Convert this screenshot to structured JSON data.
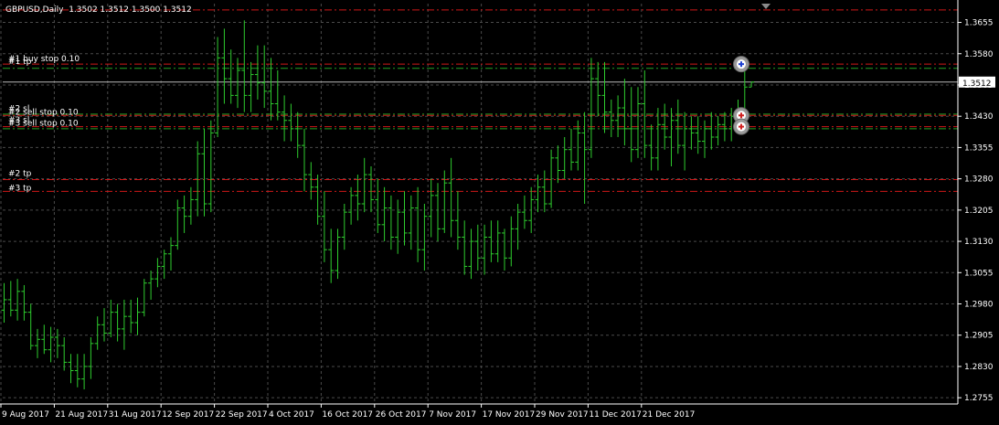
{
  "header": {
    "symbol": "GBPUSD,Daily",
    "ohlc": "1.3502 1.3512 1.3500 1.3512"
  },
  "colors": {
    "background": "#000000",
    "grid": "#4a4a4a",
    "axis": "#ffffff",
    "text": "#ffffff",
    "candle": "#2ecc2e",
    "order_line": "#d01818",
    "order_line_green": "#24a024",
    "current_price_bg": "#ffffff",
    "current_price_fg": "#000000"
  },
  "chart_data": {
    "type": "ohlc",
    "symbol": "GBPUSD",
    "timeframe": "Daily",
    "ylim": [
      1.274,
      1.37
    ],
    "y_ticks": [
      "1.3655",
      "1.3580",
      "1.3505",
      "1.3430",
      "1.3355",
      "1.3280",
      "1.3205",
      "1.3130",
      "1.3055",
      "1.2980",
      "1.2905",
      "1.2830",
      "1.2755"
    ],
    "x_ticks": [
      "9 Aug 2017",
      "21 Aug 2017",
      "31 Aug 2017",
      "12 Sep 2017",
      "22 Sep 2017",
      "4 Oct 2017",
      "16 Oct 2017",
      "26 Oct 2017",
      "7 Nov 2017",
      "17 Nov 2017",
      "29 Nov 2017",
      "11 Dec 2017",
      "21 Dec 2017"
    ],
    "x_tick_bars": [
      0,
      8,
      16,
      24,
      32,
      40,
      48,
      56,
      64,
      72,
      80,
      88,
      96
    ],
    "current_price": "1.3512",
    "bars": [
      {
        "o": 1.2965,
        "h": 1.303,
        "l": 1.2935,
        "c": 1.299
      },
      {
        "o": 1.299,
        "h": 1.3035,
        "l": 1.295,
        "c": 1.2965
      },
      {
        "o": 1.2965,
        "h": 1.304,
        "l": 1.294,
        "c": 1.301
      },
      {
        "o": 1.301,
        "h": 1.3025,
        "l": 1.294,
        "c": 1.296
      },
      {
        "o": 1.296,
        "h": 1.298,
        "l": 1.287,
        "c": 1.288
      },
      {
        "o": 1.288,
        "h": 1.292,
        "l": 1.285,
        "c": 1.2895
      },
      {
        "o": 1.2895,
        "h": 1.293,
        "l": 1.286,
        "c": 1.287
      },
      {
        "o": 1.287,
        "h": 1.2925,
        "l": 1.284,
        "c": 1.29
      },
      {
        "o": 1.29,
        "h": 1.292,
        "l": 1.285,
        "c": 1.288
      },
      {
        "o": 1.288,
        "h": 1.29,
        "l": 1.282,
        "c": 1.284
      },
      {
        "o": 1.284,
        "h": 1.286,
        "l": 1.279,
        "c": 1.282
      },
      {
        "o": 1.282,
        "h": 1.286,
        "l": 1.278,
        "c": 1.28
      },
      {
        "o": 1.28,
        "h": 1.286,
        "l": 1.2775,
        "c": 1.283
      },
      {
        "o": 1.283,
        "h": 1.29,
        "l": 1.28,
        "c": 1.2885
      },
      {
        "o": 1.2885,
        "h": 1.295,
        "l": 1.287,
        "c": 1.293
      },
      {
        "o": 1.293,
        "h": 1.297,
        "l": 1.289,
        "c": 1.291
      },
      {
        "o": 1.291,
        "h": 1.299,
        "l": 1.29,
        "c": 1.296
      },
      {
        "o": 1.296,
        "h": 1.298,
        "l": 1.289,
        "c": 1.292
      },
      {
        "o": 1.292,
        "h": 1.299,
        "l": 1.287,
        "c": 1.295
      },
      {
        "o": 1.295,
        "h": 1.299,
        "l": 1.291,
        "c": 1.2935
      },
      {
        "o": 1.2935,
        "h": 1.2995,
        "l": 1.2905,
        "c": 1.296
      },
      {
        "o": 1.296,
        "h": 1.304,
        "l": 1.295,
        "c": 1.303
      },
      {
        "o": 1.303,
        "h": 1.306,
        "l": 1.299,
        "c": 1.304
      },
      {
        "o": 1.304,
        "h": 1.309,
        "l": 1.302,
        "c": 1.307
      },
      {
        "o": 1.307,
        "h": 1.311,
        "l": 1.304,
        "c": 1.31
      },
      {
        "o": 1.31,
        "h": 1.314,
        "l": 1.306,
        "c": 1.312
      },
      {
        "o": 1.312,
        "h": 1.323,
        "l": 1.311,
        "c": 1.321
      },
      {
        "o": 1.321,
        "h": 1.324,
        "l": 1.315,
        "c": 1.319
      },
      {
        "o": 1.319,
        "h": 1.326,
        "l": 1.317,
        "c": 1.323
      },
      {
        "o": 1.323,
        "h": 1.337,
        "l": 1.319,
        "c": 1.334
      },
      {
        "o": 1.334,
        "h": 1.34,
        "l": 1.319,
        "c": 1.322
      },
      {
        "o": 1.322,
        "h": 1.342,
        "l": 1.32,
        "c": 1.339
      },
      {
        "o": 1.339,
        "h": 1.362,
        "l": 1.338,
        "c": 1.357
      },
      {
        "o": 1.357,
        "h": 1.364,
        "l": 1.346,
        "c": 1.352
      },
      {
        "o": 1.352,
        "h": 1.359,
        "l": 1.346,
        "c": 1.348
      },
      {
        "o": 1.348,
        "h": 1.357,
        "l": 1.345,
        "c": 1.354
      },
      {
        "o": 1.354,
        "h": 1.366,
        "l": 1.344,
        "c": 1.348
      },
      {
        "o": 1.348,
        "h": 1.356,
        "l": 1.344,
        "c": 1.353
      },
      {
        "o": 1.353,
        "h": 1.36,
        "l": 1.347,
        "c": 1.351
      },
      {
        "o": 1.351,
        "h": 1.36,
        "l": 1.345,
        "c": 1.349
      },
      {
        "o": 1.349,
        "h": 1.357,
        "l": 1.342,
        "c": 1.346
      },
      {
        "o": 1.346,
        "h": 1.354,
        "l": 1.342,
        "c": 1.344
      },
      {
        "o": 1.344,
        "h": 1.348,
        "l": 1.337,
        "c": 1.342
      },
      {
        "o": 1.342,
        "h": 1.346,
        "l": 1.337,
        "c": 1.34
      },
      {
        "o": 1.34,
        "h": 1.344,
        "l": 1.333,
        "c": 1.336
      },
      {
        "o": 1.336,
        "h": 1.34,
        "l": 1.325,
        "c": 1.329
      },
      {
        "o": 1.329,
        "h": 1.332,
        "l": 1.323,
        "c": 1.326
      },
      {
        "o": 1.326,
        "h": 1.329,
        "l": 1.317,
        "c": 1.319
      },
      {
        "o": 1.319,
        "h": 1.325,
        "l": 1.308,
        "c": 1.311
      },
      {
        "o": 1.311,
        "h": 1.316,
        "l": 1.303,
        "c": 1.306
      },
      {
        "o": 1.306,
        "h": 1.316,
        "l": 1.304,
        "c": 1.314
      },
      {
        "o": 1.314,
        "h": 1.322,
        "l": 1.311,
        "c": 1.32
      },
      {
        "o": 1.32,
        "h": 1.326,
        "l": 1.317,
        "c": 1.324
      },
      {
        "o": 1.324,
        "h": 1.329,
        "l": 1.318,
        "c": 1.322
      },
      {
        "o": 1.322,
        "h": 1.333,
        "l": 1.32,
        "c": 1.329
      },
      {
        "o": 1.329,
        "h": 1.331,
        "l": 1.32,
        "c": 1.323
      },
      {
        "o": 1.323,
        "h": 1.328,
        "l": 1.315,
        "c": 1.317
      },
      {
        "o": 1.317,
        "h": 1.326,
        "l": 1.313,
        "c": 1.321
      },
      {
        "o": 1.321,
        "h": 1.324,
        "l": 1.311,
        "c": 1.314
      },
      {
        "o": 1.314,
        "h": 1.323,
        "l": 1.31,
        "c": 1.32
      },
      {
        "o": 1.32,
        "h": 1.325,
        "l": 1.312,
        "c": 1.315
      },
      {
        "o": 1.315,
        "h": 1.324,
        "l": 1.311,
        "c": 1.321
      },
      {
        "o": 1.321,
        "h": 1.326,
        "l": 1.308,
        "c": 1.311
      },
      {
        "o": 1.311,
        "h": 1.322,
        "l": 1.306,
        "c": 1.319
      },
      {
        "o": 1.319,
        "h": 1.328,
        "l": 1.314,
        "c": 1.324
      },
      {
        "o": 1.324,
        "h": 1.327,
        "l": 1.313,
        "c": 1.316
      },
      {
        "o": 1.316,
        "h": 1.33,
        "l": 1.315,
        "c": 1.327
      },
      {
        "o": 1.327,
        "h": 1.333,
        "l": 1.314,
        "c": 1.318
      },
      {
        "o": 1.318,
        "h": 1.325,
        "l": 1.311,
        "c": 1.314
      },
      {
        "o": 1.314,
        "h": 1.318,
        "l": 1.305,
        "c": 1.307
      },
      {
        "o": 1.307,
        "h": 1.316,
        "l": 1.304,
        "c": 1.313
      },
      {
        "o": 1.313,
        "h": 1.317,
        "l": 1.306,
        "c": 1.309
      },
      {
        "o": 1.309,
        "h": 1.317,
        "l": 1.305,
        "c": 1.314
      },
      {
        "o": 1.314,
        "h": 1.318,
        "l": 1.308,
        "c": 1.31
      },
      {
        "o": 1.31,
        "h": 1.318,
        "l": 1.308,
        "c": 1.315
      },
      {
        "o": 1.315,
        "h": 1.316,
        "l": 1.306,
        "c": 1.309
      },
      {
        "o": 1.309,
        "h": 1.319,
        "l": 1.307,
        "c": 1.316
      },
      {
        "o": 1.316,
        "h": 1.322,
        "l": 1.311,
        "c": 1.32
      },
      {
        "o": 1.32,
        "h": 1.324,
        "l": 1.316,
        "c": 1.318
      },
      {
        "o": 1.318,
        "h": 1.326,
        "l": 1.315,
        "c": 1.323
      },
      {
        "o": 1.323,
        "h": 1.329,
        "l": 1.32,
        "c": 1.326
      },
      {
        "o": 1.326,
        "h": 1.33,
        "l": 1.32,
        "c": 1.322
      },
      {
        "o": 1.322,
        "h": 1.335,
        "l": 1.321,
        "c": 1.333
      },
      {
        "o": 1.333,
        "h": 1.336,
        "l": 1.327,
        "c": 1.33
      },
      {
        "o": 1.33,
        "h": 1.338,
        "l": 1.328,
        "c": 1.335
      },
      {
        "o": 1.335,
        "h": 1.34,
        "l": 1.33,
        "c": 1.332
      },
      {
        "o": 1.332,
        "h": 1.342,
        "l": 1.33,
        "c": 1.339
      },
      {
        "o": 1.339,
        "h": 1.344,
        "l": 1.322,
        "c": 1.335
      },
      {
        "o": 1.335,
        "h": 1.357,
        "l": 1.333,
        "c": 1.352
      },
      {
        "o": 1.352,
        "h": 1.356,
        "l": 1.343,
        "c": 1.348
      },
      {
        "o": 1.348,
        "h": 1.356,
        "l": 1.339,
        "c": 1.344
      },
      {
        "o": 1.344,
        "h": 1.347,
        "l": 1.338,
        "c": 1.342
      },
      {
        "o": 1.342,
        "h": 1.348,
        "l": 1.338,
        "c": 1.345
      },
      {
        "o": 1.345,
        "h": 1.352,
        "l": 1.336,
        "c": 1.34
      },
      {
        "o": 1.34,
        "h": 1.35,
        "l": 1.332,
        "c": 1.335
      },
      {
        "o": 1.335,
        "h": 1.35,
        "l": 1.333,
        "c": 1.346
      },
      {
        "o": 1.346,
        "h": 1.354,
        "l": 1.333,
        "c": 1.336
      },
      {
        "o": 1.336,
        "h": 1.341,
        "l": 1.33,
        "c": 1.333
      },
      {
        "o": 1.333,
        "h": 1.345,
        "l": 1.33,
        "c": 1.341
      },
      {
        "o": 1.341,
        "h": 1.346,
        "l": 1.335,
        "c": 1.338
      },
      {
        "o": 1.338,
        "h": 1.345,
        "l": 1.331,
        "c": 1.342
      },
      {
        "o": 1.342,
        "h": 1.347,
        "l": 1.334,
        "c": 1.336
      },
      {
        "o": 1.336,
        "h": 1.344,
        "l": 1.33,
        "c": 1.34
      },
      {
        "o": 1.34,
        "h": 1.343,
        "l": 1.335,
        "c": 1.339
      },
      {
        "o": 1.339,
        "h": 1.343,
        "l": 1.334,
        "c": 1.337
      },
      {
        "o": 1.337,
        "h": 1.342,
        "l": 1.333,
        "c": 1.34
      },
      {
        "o": 1.34,
        "h": 1.344,
        "l": 1.335,
        "c": 1.338
      },
      {
        "o": 1.338,
        "h": 1.343,
        "l": 1.336,
        "c": 1.341
      },
      {
        "o": 1.341,
        "h": 1.344,
        "l": 1.337,
        "c": 1.34
      },
      {
        "o": 1.34,
        "h": 1.345,
        "l": 1.337,
        "c": 1.343
      },
      {
        "o": 1.343,
        "h": 1.347,
        "l": 1.339,
        "c": 1.342
      },
      {
        "o": 1.342,
        "h": 1.356,
        "l": 1.34,
        "c": 1.35
      },
      {
        "o": 1.35,
        "h": 1.3512,
        "l": 1.35,
        "c": 1.3512
      }
    ],
    "order_lines": [
      {
        "label": "#1 buy stop 0.10",
        "price": 1.3555,
        "style": "dash-dot",
        "color": "red"
      },
      {
        "label": "#1 tp",
        "price": 1.3545,
        "style": "dash-dot",
        "color": "green"
      },
      {
        "label": "#2 sell stop 0.10",
        "price": 1.3432,
        "style": "dash-dot",
        "color": "red"
      },
      {
        "label": "#2 sl",
        "price": 1.3435,
        "style": "dash-dot",
        "color": "green"
      },
      {
        "label": "#3 sell stop 0.10",
        "price": 1.3405,
        "style": "dash-dot",
        "color": "red"
      },
      {
        "label": "#3 sl",
        "price": 1.34,
        "style": "dash-dot",
        "color": "green"
      },
      {
        "label": "#2 tp",
        "price": 1.3278,
        "style": "dash-dot",
        "color": "red"
      },
      {
        "label": "#3 tp",
        "price": 1.325,
        "style": "dash-dot",
        "color": "red"
      },
      {
        "label": "",
        "price": 1.3685,
        "style": "dash-dot",
        "color": "red"
      }
    ],
    "visible_labels": [
      {
        "text": "#1 buy stop 0.10",
        "price": 1.356
      },
      {
        "text": "#1 tp",
        "price": 1.3553
      },
      {
        "text": "#2 sl",
        "price": 1.344
      },
      {
        "text": "#2 sell stop 0.10",
        "price": 1.3432
      },
      {
        "text": "#3 sl",
        "price": 1.3413
      },
      {
        "text": "#3 sell stop 0.10",
        "price": 1.3405
      },
      {
        "text": "#2 tp",
        "price": 1.3285
      },
      {
        "text": "#3 tp",
        "price": 1.325
      }
    ],
    "markers": [
      {
        "type": "buy",
        "price": 1.3555,
        "bar": 110
      },
      {
        "type": "sell",
        "price": 1.3432,
        "bar": 110
      },
      {
        "type": "sell",
        "price": 1.3405,
        "bar": 110
      }
    ]
  }
}
